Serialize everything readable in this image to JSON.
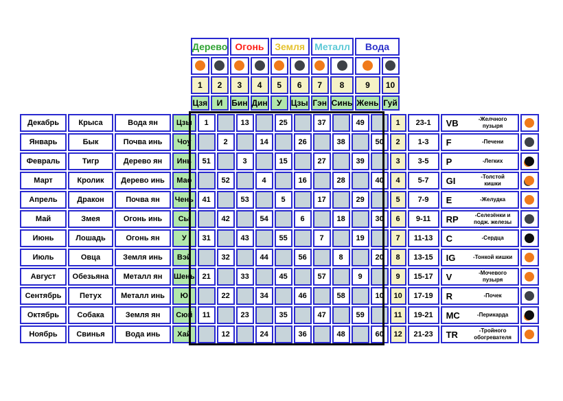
{
  "colors": {
    "border_blue": "#2828d0",
    "frame_black": "#0a0a0a",
    "cell_gray": "#c7d4da",
    "cell_green": "#b2e7ab",
    "cell_yellow": "#f5f2c6",
    "dot_orange": "#f07a1a",
    "dot_dark_gray": "#3e4248",
    "dot_black": "#0d0d0d"
  },
  "top_table": {
    "elements": [
      {
        "label": "Дерево",
        "color": "#2fa233"
      },
      {
        "label": "Огонь",
        "color": "#fd1f17"
      },
      {
        "label": "Земля",
        "color": "#e5c22e"
      },
      {
        "label": "Металл",
        "color": "#5bc8d6"
      },
      {
        "label": "Вода",
        "color": "#2a2fc9"
      }
    ],
    "dots": [
      "#f07a1a",
      "#3e4248",
      "#f07a1a",
      "#3e4248",
      "#f07a1a",
      "#3e4248",
      "#f07a1a",
      "#3e4248",
      "#f07a1a",
      "#3e4248"
    ],
    "numbers": [
      "1",
      "2",
      "3",
      "4",
      "5",
      "6",
      "7",
      "8",
      "9",
      "10"
    ],
    "stems": [
      "Цзя",
      "И",
      "Бин",
      "Дин",
      "У",
      "Цзы",
      "Гэн",
      "Синь",
      "Жень",
      "Гуй"
    ]
  },
  "rows": [
    {
      "month": "Декабрь",
      "animal": "Крыса",
      "element": "Вода ян",
      "branch": "Цзы",
      "cells": [
        "1",
        "",
        "13",
        "",
        "25",
        "",
        "37",
        "",
        "49",
        ""
      ],
      "num": "1",
      "time": "23-1",
      "abbr": "VB",
      "organ": "-Желчного пузыря",
      "dot": "#f07a1a"
    },
    {
      "month": "Январь",
      "animal": "Бык",
      "element": "Почва инь",
      "branch": "Чоу",
      "cells": [
        "",
        "2",
        "",
        "14",
        "",
        "26",
        "",
        "38",
        "",
        "50"
      ],
      "num": "2",
      "time": "1-3",
      "abbr": "F",
      "organ": "-Печени",
      "dot": "#3e4248"
    },
    {
      "month": "Февраль",
      "animal": "Тигр",
      "element": "Дерево ян",
      "branch": "Инь",
      "cells": [
        "51",
        "",
        "3",
        "",
        "15",
        "",
        "27",
        "",
        "39",
        ""
      ],
      "num": "3",
      "time": "3-5",
      "abbr": "P",
      "organ": "-Легких",
      "dot": "#0d0d0d",
      "dot_shadow": "#f07a1a"
    },
    {
      "month": "Март",
      "animal": "Кролик",
      "element": "Дерево инь",
      "branch": "Мао",
      "cells": [
        "",
        "52",
        "",
        "4",
        "",
        "16",
        "",
        "28",
        "",
        "40"
      ],
      "num": "4",
      "time": "5-7",
      "abbr": "GI",
      "organ": "-Толстой кишки",
      "dot": "#f07a1a",
      "dot_shadow": "#3e4248"
    },
    {
      "month": "Апрель",
      "animal": "Дракон",
      "element": "Почва ян",
      "branch": "Чень",
      "cells": [
        "41",
        "",
        "53",
        "",
        "5",
        "",
        "17",
        "",
        "29",
        ""
      ],
      "num": "5",
      "time": "7-9",
      "abbr": "E",
      "organ": "-Желудка",
      "dot": "#f07a1a"
    },
    {
      "month": "Май",
      "animal": "Змея",
      "element": "Огонь инь",
      "branch": "Сы",
      "cells": [
        "",
        "42",
        "",
        "54",
        "",
        "6",
        "",
        "18",
        "",
        "30"
      ],
      "num": "6",
      "time": "9-11",
      "abbr": "RP",
      "organ": "-Селезёнки и подж. железы",
      "dot": "#3e4248"
    },
    {
      "month": "Июнь",
      "animal": "Лошадь",
      "element": "Огонь ян",
      "branch": "У",
      "cells": [
        "31",
        "",
        "43",
        "",
        "55",
        "",
        "7",
        "",
        "19",
        ""
      ],
      "num": "7",
      "time": "11-13",
      "abbr": "C",
      "organ": "-Сердца",
      "dot": "#0d0d0d"
    },
    {
      "month": "Июль",
      "animal": "Овца",
      "element": "Земля инь",
      "branch": "Вэй",
      "cells": [
        "",
        "32",
        "",
        "44",
        "",
        "56",
        "",
        "8",
        "",
        "20"
      ],
      "num": "8",
      "time": "13-15",
      "abbr": "IG",
      "organ": "-Тонкой кишки",
      "dot": "#f07a1a"
    },
    {
      "month": "Август",
      "animal": "Обезьяна",
      "element": "Металл ян",
      "branch": "Шень",
      "cells": [
        "21",
        "",
        "33",
        "",
        "45",
        "",
        "57",
        "",
        "9",
        ""
      ],
      "num": "9",
      "time": "15-17",
      "abbr": "V",
      "organ": "-Мочевого пузыря",
      "dot": "#f07a1a"
    },
    {
      "month": "Сентябрь",
      "animal": "Петух",
      "element": "Металл инь",
      "branch": "Ю",
      "cells": [
        "",
        "22",
        "",
        "34",
        "",
        "46",
        "",
        "58",
        "",
        "10"
      ],
      "num": "10",
      "time": "17-19",
      "abbr": "R",
      "organ": "-Почек",
      "dot": "#3e4248"
    },
    {
      "month": "Октябрь",
      "animal": "Собака",
      "element": "Земля ян",
      "branch": "Сюй",
      "cells": [
        "11",
        "",
        "23",
        "",
        "35",
        "",
        "47",
        "",
        "59",
        ""
      ],
      "num": "11",
      "time": "19-21",
      "abbr": "MC",
      "organ": "-Перикарда",
      "dot": "#0d0d0d",
      "dot_shadow": "#f07a1a"
    },
    {
      "month": "Ноябрь",
      "animal": "Свинья",
      "element": "Вода инь",
      "branch": "Хай",
      "cells": [
        "",
        "12",
        "",
        "24",
        "",
        "36",
        "",
        "48",
        "",
        "60"
      ],
      "num": "12",
      "time": "21-23",
      "abbr": "TR",
      "organ": "-Тройного обогревателя",
      "dot": "#f07a1a"
    }
  ]
}
